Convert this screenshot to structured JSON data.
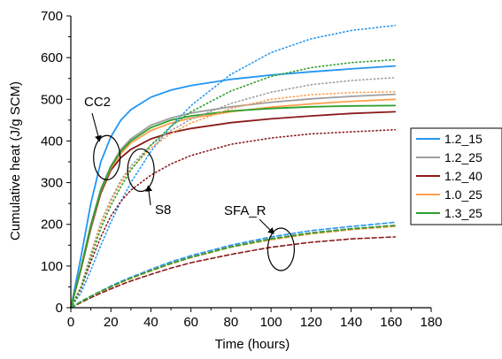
{
  "chart_data": {
    "type": "line",
    "title": "",
    "xlabel": "Time (hours)",
    "ylabel": "Cumulative heat (J/g SCM)",
    "xlim": [
      0,
      180
    ],
    "ylim": [
      0,
      700
    ],
    "xticks": [
      0,
      20,
      40,
      60,
      80,
      100,
      120,
      140,
      160,
      180
    ],
    "yticks": [
      0,
      100,
      200,
      300,
      400,
      500,
      600,
      700
    ],
    "grid": false,
    "legend_position": "right",
    "legend": [
      {
        "label": "1.2_15",
        "color": "#2196f3"
      },
      {
        "label": "1.2_25",
        "color": "#9e9e9e"
      },
      {
        "label": "1.2_40",
        "color": "#8b1a1a"
      },
      {
        "label": "1.0_25",
        "color": "#ff9f4a"
      },
      {
        "label": "1.3_25",
        "color": "#2e9e2e"
      }
    ],
    "groups": [
      {
        "label": "CC2",
        "line_style": "solid"
      },
      {
        "label": "S8",
        "line_style": "dotted"
      },
      {
        "label": "SFA_R",
        "line_style": "dashed"
      }
    ],
    "x": [
      0,
      5,
      10,
      15,
      20,
      25,
      30,
      40,
      50,
      60,
      80,
      100,
      120,
      140,
      162
    ],
    "series": [
      {
        "name": "1.2_15",
        "group": "CC2",
        "color": "#2196f3",
        "values": [
          0,
          120,
          250,
          350,
          410,
          450,
          475,
          505,
          522,
          533,
          548,
          558,
          566,
          573,
          580
        ]
      },
      {
        "name": "1.2_25",
        "group": "CC2",
        "color": "#9e9e9e",
        "values": [
          0,
          95,
          200,
          285,
          340,
          380,
          405,
          438,
          455,
          467,
          482,
          493,
          501,
          507,
          512
        ]
      },
      {
        "name": "1.2_40",
        "group": "CC2",
        "color": "#8b1a1a",
        "values": [
          0,
          90,
          190,
          275,
          330,
          360,
          380,
          405,
          420,
          430,
          444,
          453,
          460,
          466,
          470
        ]
      },
      {
        "name": "1.0_25",
        "group": "CC2",
        "color": "#ff9f4a",
        "values": [
          0,
          92,
          195,
          280,
          335,
          370,
          395,
          425,
          443,
          455,
          470,
          481,
          489,
          495,
          500
        ]
      },
      {
        "name": "1.3_25",
        "group": "CC2",
        "color": "#2e9e2e",
        "values": [
          0,
          93,
          197,
          282,
          338,
          375,
          400,
          432,
          450,
          460,
          472,
          478,
          482,
          484,
          485
        ]
      },
      {
        "name": "1.2_15",
        "group": "S8",
        "color": "#2196f3",
        "values": [
          0,
          35,
          90,
          150,
          205,
          255,
          300,
          375,
          435,
          485,
          560,
          612,
          645,
          665,
          677
        ]
      },
      {
        "name": "1.2_25",
        "group": "S8",
        "color": "#9e9e9e",
        "values": [
          0,
          50,
          130,
          205,
          260,
          305,
          340,
          390,
          425,
          452,
          490,
          517,
          535,
          545,
          552
        ]
      },
      {
        "name": "1.2_40",
        "group": "S8",
        "color": "#8b1a1a",
        "values": [
          0,
          45,
          110,
          170,
          220,
          255,
          282,
          318,
          345,
          365,
          392,
          407,
          417,
          422,
          427
        ]
      },
      {
        "name": "1.0_25",
        "group": "S8",
        "color": "#ff9f4a",
        "values": [
          0,
          50,
          125,
          200,
          255,
          300,
          333,
          383,
          418,
          443,
          478,
          500,
          511,
          516,
          518
        ]
      },
      {
        "name": "1.3_25",
        "group": "S8",
        "color": "#2e9e2e",
        "values": [
          0,
          48,
          120,
          190,
          245,
          290,
          330,
          390,
          435,
          470,
          520,
          555,
          576,
          588,
          595
        ]
      },
      {
        "name": "1.2_15",
        "group": "SFA_R",
        "color": "#2196f3",
        "values": [
          0,
          15,
          28,
          40,
          52,
          63,
          73,
          92,
          110,
          125,
          150,
          170,
          185,
          195,
          205
        ]
      },
      {
        "name": "1.2_25",
        "group": "SFA_R",
        "color": "#9e9e9e",
        "values": [
          0,
          14,
          27,
          39,
          50,
          61,
          71,
          90,
          107,
          122,
          147,
          166,
          180,
          190,
          198
        ]
      },
      {
        "name": "1.2_40",
        "group": "SFA_R",
        "color": "#8b1a1a",
        "values": [
          0,
          12,
          24,
          35,
          45,
          55,
          64,
          80,
          95,
          108,
          128,
          145,
          157,
          165,
          170
        ]
      },
      {
        "name": "1.0_25",
        "group": "SFA_R",
        "color": "#ff9f4a",
        "values": [
          0,
          14,
          27,
          38,
          49,
          60,
          70,
          88,
          105,
          120,
          145,
          163,
          177,
          187,
          195
        ]
      },
      {
        "name": "1.3_25",
        "group": "SFA_R",
        "color": "#2e9e2e",
        "values": [
          0,
          14,
          27,
          39,
          50,
          61,
          71,
          89,
          106,
          121,
          146,
          165,
          179,
          189,
          197
        ]
      }
    ],
    "annotations": [
      {
        "label": "CC2",
        "target_x": 18,
        "target_y": 360
      },
      {
        "label": "S8",
        "target_x": 35,
        "target_y": 330
      },
      {
        "label": "SFA_R",
        "target_x": 105,
        "target_y": 140
      }
    ]
  }
}
